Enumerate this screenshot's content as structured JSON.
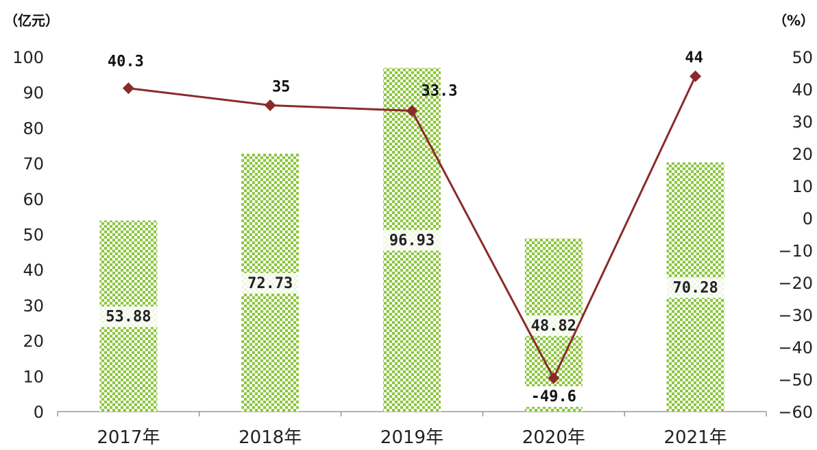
{
  "chart_data": {
    "type": "bar+line",
    "categories": [
      "2017年",
      "2018年",
      "2019年",
      "2020年",
      "2021年"
    ],
    "left_axis": {
      "unit": "（亿元）",
      "ylim": [
        0,
        100
      ],
      "ticks": [
        "0",
        "10",
        "20",
        "30",
        "40",
        "50",
        "60",
        "70",
        "80",
        "90",
        "100"
      ]
    },
    "right_axis": {
      "unit": "（%）",
      "ylim": [
        -60,
        50
      ],
      "ticks": [
        "-60",
        "-50",
        "-40",
        "-30",
        "-20",
        "-10",
        "0",
        "10",
        "20",
        "30",
        "40",
        "50"
      ]
    },
    "bars": {
      "values": [
        53.88,
        72.73,
        96.93,
        48.82,
        70.28
      ],
      "labels": [
        "53.88",
        "72.73",
        "96.93",
        "48.82",
        "70.28"
      ],
      "color": "#8dc63f"
    },
    "line": {
      "values": [
        40.3,
        35,
        33.3,
        -49.6,
        44
      ],
      "labels": [
        "40.3",
        "35",
        "33.3",
        "-49.6",
        "44"
      ],
      "color": "#8b2a2a"
    }
  }
}
